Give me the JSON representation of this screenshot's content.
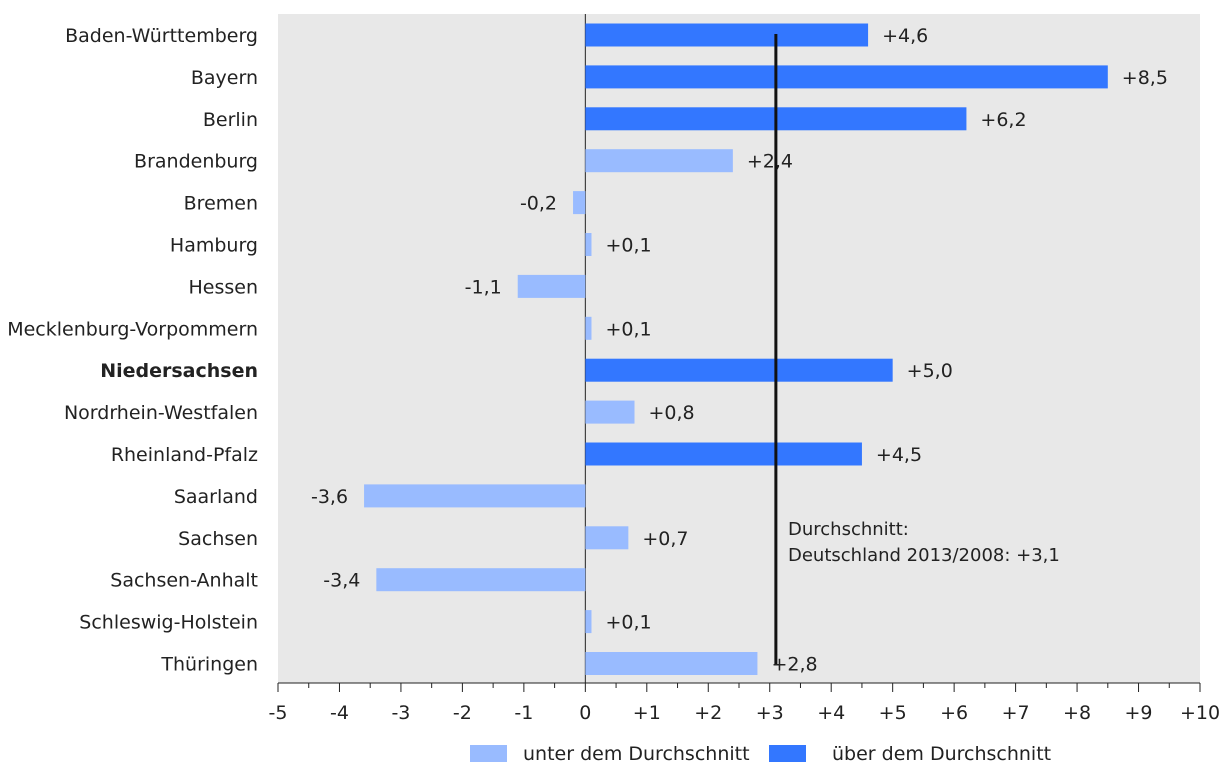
{
  "chart_data": {
    "type": "bar",
    "orientation": "horizontal",
    "categories": [
      "Baden-Württemberg",
      "Bayern",
      "Berlin",
      "Brandenburg",
      "Bremen",
      "Hamburg",
      "Hessen",
      "Mecklenburg-Vorpommern",
      "Niedersachsen",
      "Nordrhein-Westfalen",
      "Rheinland-Pfalz",
      "Saarland",
      "Sachsen",
      "Sachsen-Anhalt",
      "Schleswig-Holstein",
      "Thüringen"
    ],
    "highlighted_category": "Niedersachsen",
    "values": [
      4.6,
      8.5,
      6.2,
      2.4,
      -0.2,
      0.1,
      -1.1,
      0.1,
      5.0,
      0.8,
      4.5,
      -3.6,
      0.7,
      -3.4,
      0.1,
      2.8
    ],
    "value_labels": [
      "+4,6",
      "+8,5",
      "+6,2",
      "+2,4",
      "-0,2",
      "+0,1",
      "-1,1",
      "+0,1",
      "+5,0",
      "+0,8",
      "+4,5",
      "-3,6",
      "+0,7",
      "-3,4",
      "+0,1",
      "+2,8"
    ],
    "group": [
      "above",
      "above",
      "above",
      "below",
      "below",
      "below",
      "below",
      "below",
      "above",
      "below",
      "above",
      "below",
      "below",
      "below",
      "below",
      "below"
    ],
    "xlim": [
      -5,
      10
    ],
    "x_ticks": [
      -5,
      -4,
      -3,
      -2,
      -1,
      0,
      1,
      2,
      3,
      4,
      5,
      6,
      7,
      8,
      9,
      10
    ],
    "x_tick_labels": [
      "-5",
      "-4",
      "-3",
      "-2",
      "-1",
      "0",
      "+1",
      "+2",
      "+3",
      "+4",
      "+5",
      "+6",
      "+7",
      "+8",
      "+9",
      "+10"
    ],
    "reference_line": {
      "value": 3.1,
      "label_line1": "Durchschnitt:",
      "label_line2": "Deutschland 2013/2008: +3,1"
    },
    "legend": [
      {
        "key": "below",
        "label": "unter dem Durchschnitt",
        "color": "#99bbff"
      },
      {
        "key": "above",
        "label": "über dem Durchschnitt",
        "color": "#3377ff"
      }
    ],
    "legend_position": "bottom",
    "colors": {
      "plot_background": "#e8e8e8",
      "below": "#99bbff",
      "above": "#3377ff"
    },
    "grid": false
  }
}
